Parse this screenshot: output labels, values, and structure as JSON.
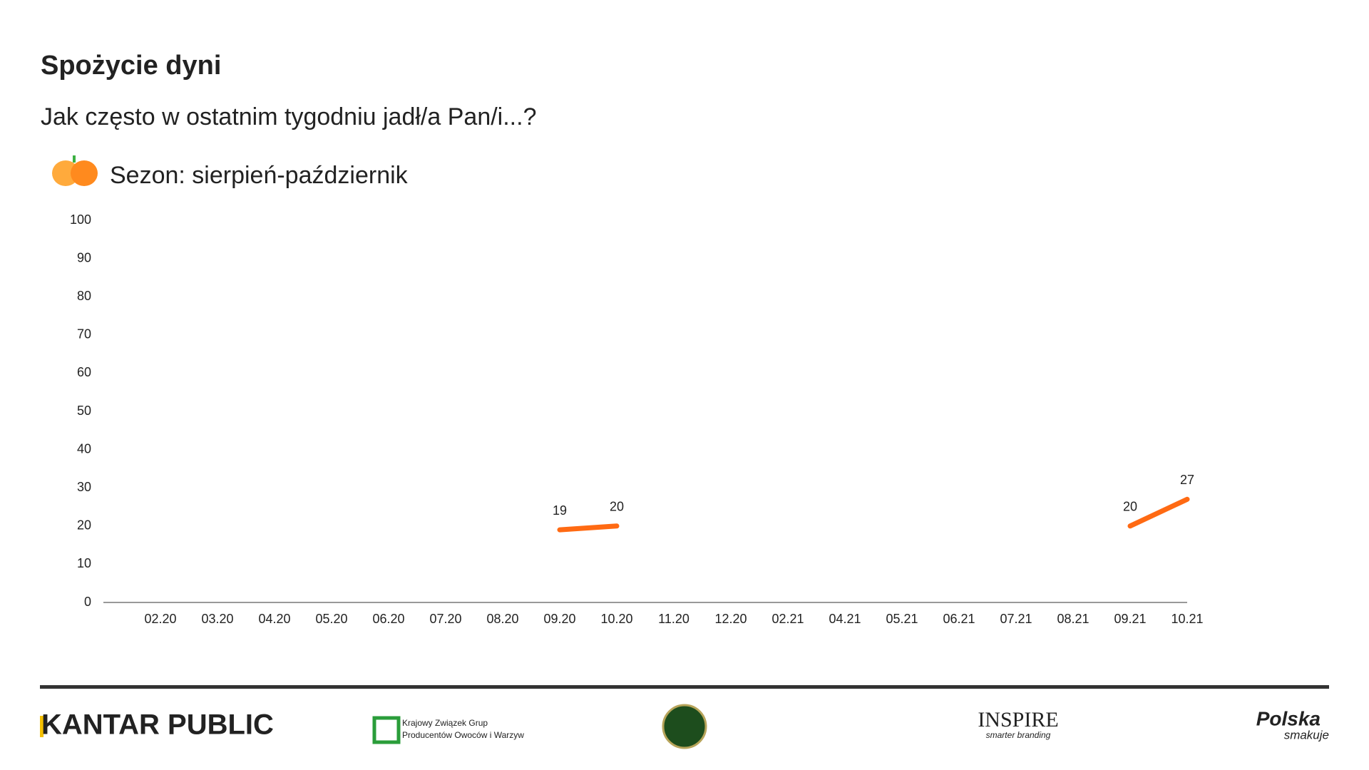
{
  "chart_data": {
    "type": "line",
    "title": "Spożycie dyni",
    "subtitle": "Jak często w ostatnim tygodniu jadł/a Pan/i...?",
    "season": "Sezon: sierpień-październik",
    "categories": [
      "02.20",
      "03.20",
      "04.20",
      "05.20",
      "06.20",
      "07.20",
      "08.20",
      "09.20",
      "10.20",
      "11.20",
      "12.20",
      "02.21",
      "04.21",
      "05.21",
      "06.21",
      "07.21",
      "08.21",
      "09.21",
      "10.21"
    ],
    "series": [
      {
        "color": "#ff6a13",
        "values": [
          null,
          null,
          null,
          null,
          null,
          null,
          null,
          19,
          20,
          null,
          null,
          null,
          null,
          null,
          null,
          null,
          null,
          20,
          27
        ]
      }
    ],
    "ylim": [
      0,
      100
    ],
    "yticks": [
      0,
      10,
      20,
      30,
      40,
      50,
      60,
      70,
      80,
      90,
      100
    ],
    "grid": false
  },
  "footer": {
    "kantar": "KANTAR PUBLIC",
    "kzgp_line1": "Krajowy Związek Grup",
    "kzgp_line2": "Producentów Owoców i Warzyw",
    "inspire": "INSPIRE",
    "inspire_sub": "smarter branding",
    "polska": "Polska",
    "smakuje": "smakuje"
  }
}
